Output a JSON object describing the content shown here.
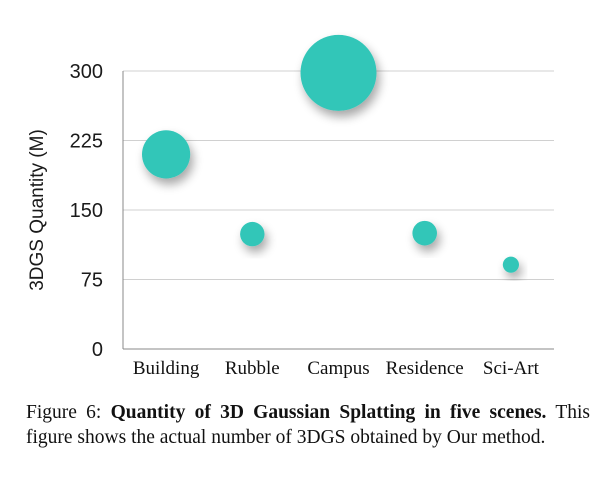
{
  "chart_data": {
    "type": "scatter",
    "title": "",
    "xlabel": "",
    "ylabel": "3DGS Quantity (M)",
    "ylim": [
      0,
      300
    ],
    "yticks": [
      0,
      75,
      150,
      225,
      300
    ],
    "grid": true,
    "categories": [
      "Building",
      "Rubble",
      "Campus",
      "Residence",
      "Sci-Art"
    ],
    "values": [
      210,
      124,
      298,
      125,
      91
    ],
    "marker": "bubble (size proportional to value)",
    "color": "#33c6b8"
  },
  "caption": {
    "label": "Figure 6:",
    "bold": "Quantity of 3D Gaussian Splatting in five scenes.",
    "text": "This figure shows the actual number of 3DGS obtained by Our method."
  }
}
